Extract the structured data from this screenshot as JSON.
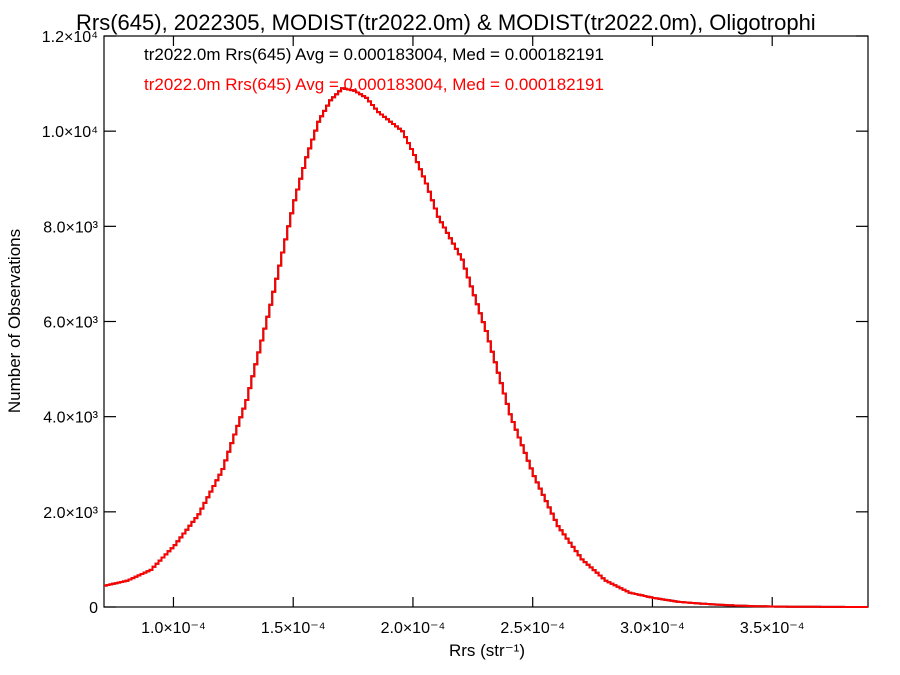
{
  "chart_data": {
    "type": "histogram",
    "title": "Rrs(645), 2022305, MODIST(tr2022.0m) & MODIST(tr2022.0m), Oligotrophi",
    "xlabel": "Rrs (str⁻¹)",
    "ylabel": "Number of Observations",
    "xlim": [
      7.1e-05,
      0.00039
    ],
    "ylim": [
      0,
      12000
    ],
    "x_ticks": [
      0.0001,
      0.00015,
      0.0002,
      0.00025,
      0.0003,
      0.00035
    ],
    "x_tick_labels": [
      "1.0×10⁻⁴",
      "1.5×10⁻⁴",
      "2.0×10⁻⁴",
      "2.5×10⁻⁴",
      "3.0×10⁻⁴",
      "3.5×10⁻⁴"
    ],
    "y_ticks": [
      0,
      2000,
      4000,
      6000,
      8000,
      10000,
      12000
    ],
    "y_tick_labels": [
      "0",
      "2.0×10³",
      "4.0×10³",
      "6.0×10³",
      "8.0×10³",
      "1.0×10⁴",
      "1.2×10⁴"
    ],
    "legend": [
      {
        "text": "tr2022.0m Rrs(645) Avg = 0.000183004, Med = 0.000182191",
        "color": "#000000"
      },
      {
        "text": "tr2022.0m Rrs(645) Avg = 0.000183004, Med = 0.000182191",
        "color": "#ff0000"
      }
    ],
    "series": [
      {
        "color_primary": "#000000",
        "color_overlay": "#ff0000",
        "points": [
          [
            7.1e-05,
            450
          ],
          [
            8e-05,
            550
          ],
          [
            9e-05,
            780
          ],
          [
            0.0001,
            1300
          ],
          [
            0.00011,
            1950
          ],
          [
            0.00012,
            2900
          ],
          [
            0.00013,
            4350
          ],
          [
            0.00014,
            6350
          ],
          [
            0.00015,
            8550
          ],
          [
            0.000155,
            9450
          ],
          [
            0.00016,
            10200
          ],
          [
            0.000165,
            10650
          ],
          [
            0.00017,
            10900
          ],
          [
            0.000175,
            10850
          ],
          [
            0.00018,
            10700
          ],
          [
            0.000185,
            10400
          ],
          [
            0.00019,
            10200
          ],
          [
            0.000195,
            10000
          ],
          [
            0.0002,
            9500
          ],
          [
            0.000205,
            8900
          ],
          [
            0.00021,
            8200
          ],
          [
            0.00022,
            7300
          ],
          [
            0.00023,
            5800
          ],
          [
            0.00024,
            4050
          ],
          [
            0.00025,
            2750
          ],
          [
            0.00026,
            1700
          ],
          [
            0.00027,
            1000
          ],
          [
            0.00028,
            550
          ],
          [
            0.00029,
            300
          ],
          [
            0.0003,
            190
          ],
          [
            0.00031,
            110
          ],
          [
            0.00032,
            70
          ],
          [
            0.00033,
            40
          ],
          [
            0.00034,
            20
          ],
          [
            0.00035,
            10
          ],
          [
            0.00036,
            5
          ],
          [
            0.00037,
            3
          ],
          [
            0.00038,
            1
          ],
          [
            0.00039,
            0
          ]
        ]
      }
    ]
  }
}
